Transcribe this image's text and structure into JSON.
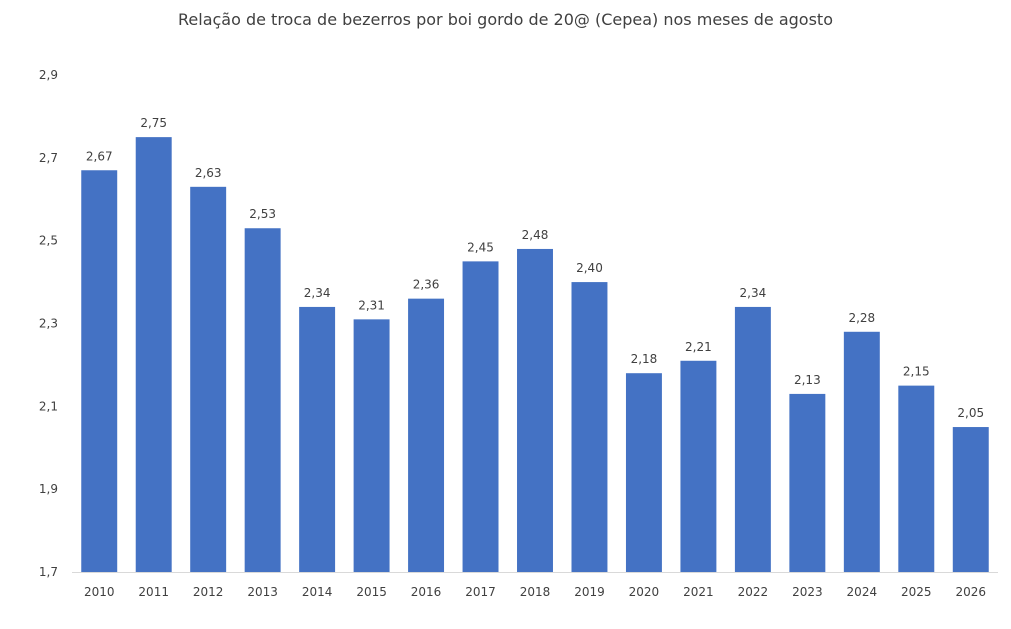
{
  "chart_data": {
    "type": "bar",
    "title": "Relação de troca de bezerros por boi gordo de 20@ (Cepea) nos meses de agosto",
    "xlabel": "",
    "ylabel": "",
    "categories": [
      "2010",
      "2011",
      "2012",
      "2013",
      "2014",
      "2015",
      "2016",
      "2017",
      "2018",
      "2019",
      "2020",
      "2021",
      "2022",
      "2023",
      "2024",
      "2025",
      "2026"
    ],
    "values": [
      2.67,
      2.75,
      2.63,
      2.53,
      2.34,
      2.31,
      2.36,
      2.45,
      2.48,
      2.4,
      2.18,
      2.21,
      2.34,
      2.13,
      2.28,
      2.15,
      2.05
    ],
    "data_labels": [
      "2,67",
      "2,75",
      "2,63",
      "2,53",
      "2,34",
      "2,31",
      "2,36",
      "2,45",
      "2,48",
      "2,40",
      "2,18",
      "2,21",
      "2,34",
      "2,13",
      "2,28",
      "2,15",
      "2,05"
    ],
    "ylim": [
      1.7,
      2.9
    ],
    "yticks": [
      1.7,
      1.9,
      2.1,
      2.3,
      2.5,
      2.7,
      2.9
    ],
    "ytick_labels": [
      "1,7",
      "1,9",
      "2,1",
      "2,3",
      "2,5",
      "2,7",
      "2,9"
    ],
    "grid": false,
    "legend": "none",
    "bar_color": "#4472C4"
  }
}
